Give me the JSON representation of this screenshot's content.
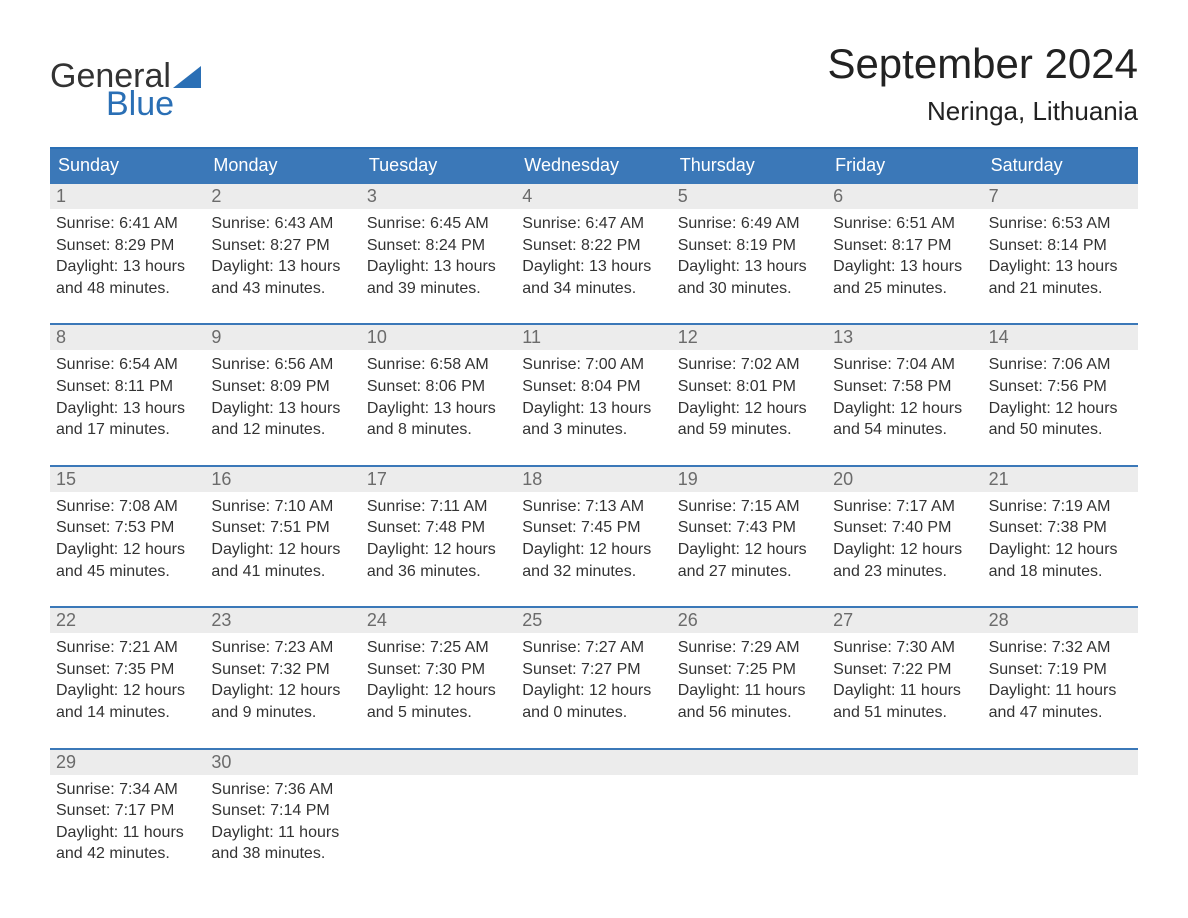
{
  "branding": {
    "logo_general": "General",
    "logo_blue": "Blue",
    "logo_sail_color": "#2a6fb5",
    "logo_text_color": "#2a6fb5"
  },
  "title": {
    "month": "September 2024",
    "location": "Neringa, Lithuania"
  },
  "colors": {
    "header_bg": "#3b78b8",
    "header_text": "#ffffff",
    "row_border": "#3b78b8",
    "daynum_bg": "#ececec",
    "daynum_text": "#6b6b6b",
    "body_text": "#333333",
    "page_bg": "#ffffff"
  },
  "weekdays": [
    "Sunday",
    "Monday",
    "Tuesday",
    "Wednesday",
    "Thursday",
    "Friday",
    "Saturday"
  ],
  "weeks": [
    [
      {
        "day": "1",
        "sunrise": "6:41 AM",
        "sunset": "8:29 PM",
        "daylight_h": 13,
        "daylight_m": 48
      },
      {
        "day": "2",
        "sunrise": "6:43 AM",
        "sunset": "8:27 PM",
        "daylight_h": 13,
        "daylight_m": 43
      },
      {
        "day": "3",
        "sunrise": "6:45 AM",
        "sunset": "8:24 PM",
        "daylight_h": 13,
        "daylight_m": 39
      },
      {
        "day": "4",
        "sunrise": "6:47 AM",
        "sunset": "8:22 PM",
        "daylight_h": 13,
        "daylight_m": 34
      },
      {
        "day": "5",
        "sunrise": "6:49 AM",
        "sunset": "8:19 PM",
        "daylight_h": 13,
        "daylight_m": 30
      },
      {
        "day": "6",
        "sunrise": "6:51 AM",
        "sunset": "8:17 PM",
        "daylight_h": 13,
        "daylight_m": 25
      },
      {
        "day": "7",
        "sunrise": "6:53 AM",
        "sunset": "8:14 PM",
        "daylight_h": 13,
        "daylight_m": 21
      }
    ],
    [
      {
        "day": "8",
        "sunrise": "6:54 AM",
        "sunset": "8:11 PM",
        "daylight_h": 13,
        "daylight_m": 17
      },
      {
        "day": "9",
        "sunrise": "6:56 AM",
        "sunset": "8:09 PM",
        "daylight_h": 13,
        "daylight_m": 12
      },
      {
        "day": "10",
        "sunrise": "6:58 AM",
        "sunset": "8:06 PM",
        "daylight_h": 13,
        "daylight_m": 8
      },
      {
        "day": "11",
        "sunrise": "7:00 AM",
        "sunset": "8:04 PM",
        "daylight_h": 13,
        "daylight_m": 3
      },
      {
        "day": "12",
        "sunrise": "7:02 AM",
        "sunset": "8:01 PM",
        "daylight_h": 12,
        "daylight_m": 59
      },
      {
        "day": "13",
        "sunrise": "7:04 AM",
        "sunset": "7:58 PM",
        "daylight_h": 12,
        "daylight_m": 54
      },
      {
        "day": "14",
        "sunrise": "7:06 AM",
        "sunset": "7:56 PM",
        "daylight_h": 12,
        "daylight_m": 50
      }
    ],
    [
      {
        "day": "15",
        "sunrise": "7:08 AM",
        "sunset": "7:53 PM",
        "daylight_h": 12,
        "daylight_m": 45
      },
      {
        "day": "16",
        "sunrise": "7:10 AM",
        "sunset": "7:51 PM",
        "daylight_h": 12,
        "daylight_m": 41
      },
      {
        "day": "17",
        "sunrise": "7:11 AM",
        "sunset": "7:48 PM",
        "daylight_h": 12,
        "daylight_m": 36
      },
      {
        "day": "18",
        "sunrise": "7:13 AM",
        "sunset": "7:45 PM",
        "daylight_h": 12,
        "daylight_m": 32
      },
      {
        "day": "19",
        "sunrise": "7:15 AM",
        "sunset": "7:43 PM",
        "daylight_h": 12,
        "daylight_m": 27
      },
      {
        "day": "20",
        "sunrise": "7:17 AM",
        "sunset": "7:40 PM",
        "daylight_h": 12,
        "daylight_m": 23
      },
      {
        "day": "21",
        "sunrise": "7:19 AM",
        "sunset": "7:38 PM",
        "daylight_h": 12,
        "daylight_m": 18
      }
    ],
    [
      {
        "day": "22",
        "sunrise": "7:21 AM",
        "sunset": "7:35 PM",
        "daylight_h": 12,
        "daylight_m": 14
      },
      {
        "day": "23",
        "sunrise": "7:23 AM",
        "sunset": "7:32 PM",
        "daylight_h": 12,
        "daylight_m": 9
      },
      {
        "day": "24",
        "sunrise": "7:25 AM",
        "sunset": "7:30 PM",
        "daylight_h": 12,
        "daylight_m": 5
      },
      {
        "day": "25",
        "sunrise": "7:27 AM",
        "sunset": "7:27 PM",
        "daylight_h": 12,
        "daylight_m": 0
      },
      {
        "day": "26",
        "sunrise": "7:29 AM",
        "sunset": "7:25 PM",
        "daylight_h": 11,
        "daylight_m": 56
      },
      {
        "day": "27",
        "sunrise": "7:30 AM",
        "sunset": "7:22 PM",
        "daylight_h": 11,
        "daylight_m": 51
      },
      {
        "day": "28",
        "sunrise": "7:32 AM",
        "sunset": "7:19 PM",
        "daylight_h": 11,
        "daylight_m": 47
      }
    ],
    [
      {
        "day": "29",
        "sunrise": "7:34 AM",
        "sunset": "7:17 PM",
        "daylight_h": 11,
        "daylight_m": 42
      },
      {
        "day": "30",
        "sunrise": "7:36 AM",
        "sunset": "7:14 PM",
        "daylight_h": 11,
        "daylight_m": 38
      },
      null,
      null,
      null,
      null,
      null
    ]
  ],
  "labels": {
    "sunrise_prefix": "Sunrise: ",
    "sunset_prefix": "Sunset: ",
    "daylight_prefix": "Daylight: ",
    "hours_word": " hours",
    "and_word": "and ",
    "minutes_word": " minutes."
  }
}
